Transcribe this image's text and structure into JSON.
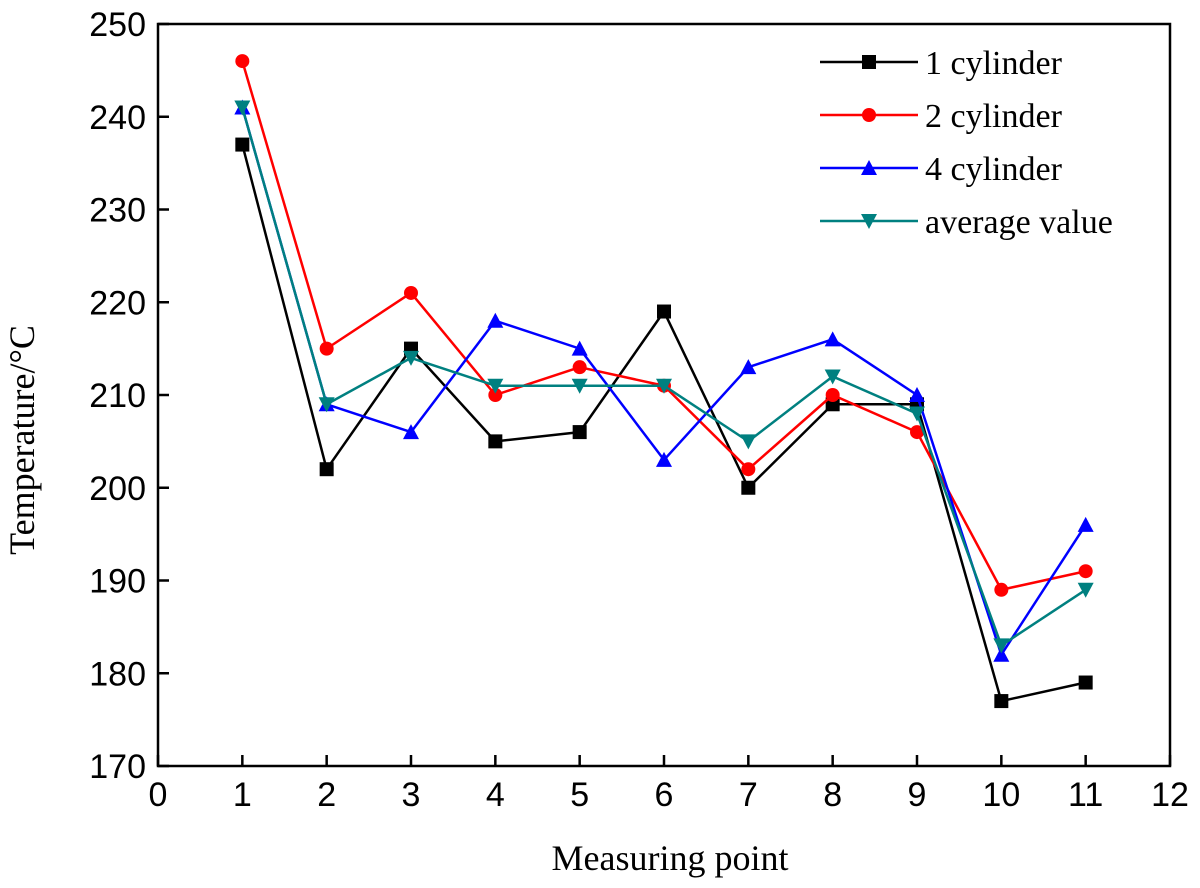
{
  "chart_data": {
    "type": "line",
    "title": "",
    "xlabel": "Measuring point",
    "ylabel": "Temperature/°C",
    "xlim": [
      0,
      12
    ],
    "ylim": [
      170,
      250
    ],
    "x_ticks": [
      0,
      1,
      2,
      3,
      4,
      5,
      6,
      7,
      8,
      9,
      10,
      11,
      12
    ],
    "y_ticks": [
      170,
      180,
      190,
      200,
      210,
      220,
      230,
      240,
      250
    ],
    "grid": false,
    "legend_position": "top-right",
    "x": [
      1,
      2,
      3,
      4,
      5,
      6,
      7,
      8,
      9,
      10,
      11
    ],
    "series": [
      {
        "name": "1 cylinder",
        "color": "#000000",
        "marker": "square",
        "values": [
          237,
          202,
          215,
          205,
          206,
          219,
          200,
          209,
          209,
          177,
          179
        ]
      },
      {
        "name": "2 cylinder",
        "color": "#ff0000",
        "marker": "circle",
        "values": [
          246,
          215,
          221,
          210,
          213,
          211,
          202,
          210,
          206,
          189,
          191
        ]
      },
      {
        "name": "4 cylinder",
        "color": "#0000ff",
        "marker": "triangle-up",
        "values": [
          241,
          209,
          206,
          218,
          215,
          203,
          213,
          216,
          210,
          182,
          196
        ]
      },
      {
        "name": "average value",
        "color": "#008080",
        "marker": "triangle-down",
        "values": [
          241,
          209,
          214,
          211,
          211,
          211,
          205,
          212,
          208,
          183,
          189
        ]
      }
    ]
  }
}
